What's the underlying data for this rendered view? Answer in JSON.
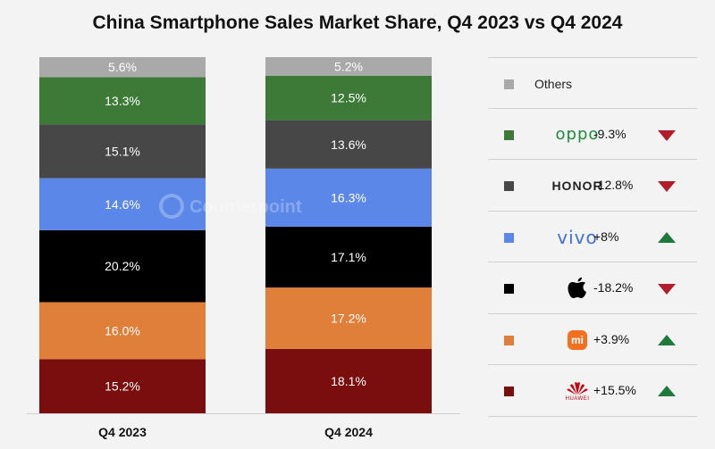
{
  "chart_data": {
    "type": "bar",
    "stacked": true,
    "title": "China Smartphone Sales Market Share, Q4 2023 vs Q4 2024",
    "categories": [
      "Q4 2023",
      "Q4 2024"
    ],
    "series": [
      {
        "name": "Huawei",
        "color": "#7a0d0d",
        "values": [
          15.2,
          18.1
        ],
        "labels": [
          "15.2%",
          "18.1%"
        ]
      },
      {
        "name": "Xiaomi",
        "color": "#e07f3a",
        "values": [
          16.0,
          17.2
        ],
        "labels": [
          "16.0%",
          "17.2%"
        ]
      },
      {
        "name": "Apple",
        "color": "#000000",
        "values": [
          20.2,
          17.1
        ],
        "labels": [
          "20.2%",
          "17.1%"
        ]
      },
      {
        "name": "vivo",
        "color": "#5b87e8",
        "values": [
          14.6,
          16.3
        ],
        "labels": [
          "14.6%",
          "16.3%"
        ]
      },
      {
        "name": "HONOR",
        "color": "#474747",
        "values": [
          15.1,
          13.6
        ],
        "labels": [
          "15.1%",
          "13.6%"
        ]
      },
      {
        "name": "OPPO",
        "color": "#3d7a37",
        "values": [
          13.3,
          12.5
        ],
        "labels": [
          "13.3%",
          "12.5%"
        ]
      },
      {
        "name": "Others",
        "color": "#a9a9a9",
        "values": [
          5.6,
          5.2
        ],
        "labels": [
          "5.6%",
          "5.2%"
        ]
      }
    ],
    "ylim": [
      0,
      100
    ],
    "legend_position": "right",
    "watermark": "Counterpoint"
  },
  "legend": [
    {
      "name": "Others",
      "color": "#a9a9a9",
      "change": "",
      "trend": ""
    },
    {
      "name": "oppo",
      "color": "#3d7a37",
      "change": "-9.3%",
      "trend": "down"
    },
    {
      "name": "HONOR",
      "color": "#474747",
      "change": "-12.8%",
      "trend": "down"
    },
    {
      "name": "vivo",
      "color": "#5b87e8",
      "change": "+8%",
      "trend": "up"
    },
    {
      "name": "Apple",
      "color": "#000000",
      "change": "-18.2%",
      "trend": "down"
    },
    {
      "name": "mi",
      "color": "#e07f3a",
      "change": "+3.9%",
      "trend": "up"
    },
    {
      "name": "HUAWEI",
      "color": "#7a0d0d",
      "change": "+15.5%",
      "trend": "up"
    }
  ]
}
